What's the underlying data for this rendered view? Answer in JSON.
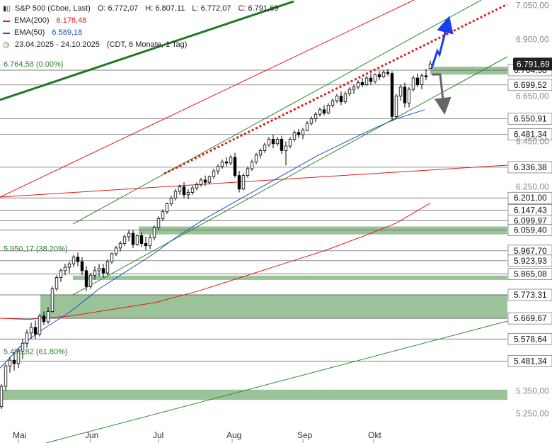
{
  "header": {
    "instrument": "S&P 500 (Cboe, Last)",
    "open": "O: 6.772,07",
    "high": "H: 6.807,11",
    "low": "L: 6.772,07",
    "close": "C: 6.791,69",
    "ema200": "EMA(200)",
    "ema200_value": "6.178,48",
    "ema50": "EMA(50)",
    "ema50_value": "6.589,18",
    "range": "23.04.2025 - 24.10.2025",
    "settings": "(CDT, 6 Monate, 1 Tag)",
    "icons": [
      "bar-chart-icon",
      "clock-icon"
    ]
  },
  "colors": {
    "ema200": "#e21b1b",
    "ema50": "#1f4fc9",
    "zone": "#8fbc8f",
    "trend_green": "#2e8b2e",
    "trend_dark_green": "#1e7a1e",
    "arrow_up": "#1a3ff0",
    "arrow_down": "#666666",
    "last_price_box": "#222222"
  },
  "chart_data": {
    "type": "candlestick",
    "title": "S&P 500 (Cboe, Last)",
    "period": "23.04.2025 - 24.10.2025",
    "ylim": [
      5250,
      7100
    ],
    "y_ticks": [
      "7.050,00",
      "6.900,00",
      "6.650,00",
      "6.450,00",
      "6.250,00",
      "5.350,00",
      "5.250,00"
    ],
    "x_ticks": [
      "Mai",
      "Jun",
      "Jul",
      "Aug",
      "Sep",
      "Okt"
    ],
    "last_price": "6.791,69",
    "horizontal_levels": [
      {
        "value": 6764.58,
        "label": "6.764,58"
      },
      {
        "value": 6699.52,
        "label": "6.699,52"
      },
      {
        "value": 6550.91,
        "label": "6.550,91"
      },
      {
        "value": 6481.34,
        "label": "6.481,34"
      },
      {
        "value": 6336.38,
        "label": "6.336,38"
      },
      {
        "value": 6201.0,
        "label": "6.201,00"
      },
      {
        "value": 6147.43,
        "label": "6.147,43"
      },
      {
        "value": 6099.97,
        "label": "6.099,97"
      },
      {
        "value": 6059.4,
        "label": "6.059,40"
      },
      {
        "value": 5967.7,
        "label": "5.967,70"
      },
      {
        "value": 5923.93,
        "label": "5.923,93"
      },
      {
        "value": 5865.08,
        "label": "5.865,08"
      },
      {
        "value": 5773.31,
        "label": "5.773,31"
      },
      {
        "value": 5669.67,
        "label": "5.669,67"
      },
      {
        "value": 5578.64,
        "label": "5.578,64"
      },
      {
        "value": 5481.34,
        "label": "5.481,34"
      }
    ],
    "fib_labels": [
      {
        "value": 6764.58,
        "text": "6.764,58 (0.00%)"
      },
      {
        "value": 5950.17,
        "text": "5.950,17 (38.20%)"
      },
      {
        "value": 5496.82,
        "text": "5.496,82 (61.80%)"
      }
    ],
    "zones": [
      {
        "low": 6745,
        "high": 6780
      },
      {
        "low": 6040,
        "high": 6075
      },
      {
        "low": 5845,
        "high": 5858
      },
      {
        "low": 5670,
        "high": 5775
      },
      {
        "low": 5310,
        "high": 5355
      }
    ],
    "candles": [
      [
        5280,
        5380,
        5270,
        5370
      ],
      [
        5370,
        5470,
        5350,
        5460
      ],
      [
        5460,
        5500,
        5430,
        5485
      ],
      [
        5485,
        5520,
        5440,
        5470
      ],
      [
        5470,
        5540,
        5450,
        5525
      ],
      [
        5525,
        5580,
        5490,
        5560
      ],
      [
        5560,
        5620,
        5540,
        5605
      ],
      [
        5605,
        5650,
        5580,
        5630
      ],
      [
        5630,
        5660,
        5580,
        5600
      ],
      [
        5600,
        5690,
        5590,
        5680
      ],
      [
        5680,
        5700,
        5640,
        5655
      ],
      [
        5655,
        5720,
        5645,
        5700
      ],
      [
        5700,
        5810,
        5695,
        5800
      ],
      [
        5800,
        5860,
        5790,
        5850
      ],
      [
        5850,
        5890,
        5830,
        5880
      ],
      [
        5880,
        5910,
        5860,
        5895
      ],
      [
        5895,
        5920,
        5870,
        5910
      ],
      [
        5910,
        5950,
        5895,
        5940
      ],
      [
        5940,
        5960,
        5900,
        5920
      ],
      [
        5920,
        5940,
        5860,
        5880
      ],
      [
        5880,
        5900,
        5790,
        5810
      ],
      [
        5810,
        5870,
        5800,
        5860
      ],
      [
        5860,
        5900,
        5840,
        5880
      ],
      [
        5880,
        5910,
        5855,
        5890
      ],
      [
        5890,
        5910,
        5850,
        5870
      ],
      [
        5870,
        5930,
        5860,
        5920
      ],
      [
        5920,
        5960,
        5910,
        5955
      ],
      [
        5955,
        5990,
        5945,
        5980
      ],
      [
        5980,
        6010,
        5965,
        6000
      ],
      [
        6000,
        6040,
        5990,
        6030
      ],
      [
        6030,
        6060,
        6010,
        6045
      ],
      [
        6045,
        6060,
        5980,
        5995
      ],
      [
        5995,
        6040,
        5990,
        6035
      ],
      [
        6035,
        6050,
        5985,
        6000
      ],
      [
        6000,
        6030,
        5970,
        5990
      ],
      [
        5990,
        6040,
        5975,
        6025
      ],
      [
        6025,
        6080,
        6015,
        6070
      ],
      [
        6070,
        6120,
        6060,
        6110
      ],
      [
        6110,
        6150,
        6100,
        6140
      ],
      [
        6140,
        6180,
        6130,
        6175
      ],
      [
        6175,
        6210,
        6165,
        6200
      ],
      [
        6200,
        6240,
        6190,
        6230
      ],
      [
        6230,
        6260,
        6215,
        6250
      ],
      [
        6250,
        6270,
        6200,
        6215
      ],
      [
        6215,
        6240,
        6195,
        6225
      ],
      [
        6225,
        6255,
        6215,
        6245
      ],
      [
        6245,
        6270,
        6235,
        6260
      ],
      [
        6260,
        6290,
        6250,
        6280
      ],
      [
        6280,
        6300,
        6255,
        6270
      ],
      [
        6270,
        6300,
        6260,
        6295
      ],
      [
        6295,
        6330,
        6285,
        6320
      ],
      [
        6320,
        6350,
        6305,
        6340
      ],
      [
        6340,
        6370,
        6330,
        6360
      ],
      [
        6360,
        6380,
        6340,
        6355
      ],
      [
        6355,
        6390,
        6345,
        6380
      ],
      [
        6380,
        6400,
        6290,
        6300
      ],
      [
        6300,
        6320,
        6225,
        6240
      ],
      [
        6240,
        6310,
        6235,
        6300
      ],
      [
        6300,
        6340,
        6290,
        6330
      ],
      [
        6330,
        6370,
        6320,
        6360
      ],
      [
        6360,
        6400,
        6350,
        6390
      ],
      [
        6390,
        6420,
        6375,
        6410
      ],
      [
        6410,
        6445,
        6400,
        6435
      ],
      [
        6435,
        6470,
        6425,
        6460
      ],
      [
        6460,
        6480,
        6420,
        6440
      ],
      [
        6440,
        6470,
        6430,
        6460
      ],
      [
        6460,
        6475,
        6395,
        6410
      ],
      [
        6410,
        6450,
        6345,
        6430
      ],
      [
        6430,
        6470,
        6420,
        6460
      ],
      [
        6460,
        6500,
        6450,
        6490
      ],
      [
        6490,
        6505,
        6465,
        6480
      ],
      [
        6480,
        6510,
        6460,
        6500
      ],
      [
        6500,
        6540,
        6495,
        6530
      ],
      [
        6530,
        6560,
        6520,
        6550
      ],
      [
        6550,
        6580,
        6535,
        6570
      ],
      [
        6570,
        6600,
        6560,
        6590
      ],
      [
        6590,
        6610,
        6565,
        6575
      ],
      [
        6575,
        6620,
        6570,
        6610
      ],
      [
        6610,
        6640,
        6600,
        6630
      ],
      [
        6630,
        6660,
        6620,
        6650
      ],
      [
        6650,
        6670,
        6610,
        6625
      ],
      [
        6625,
        6670,
        6615,
        6660
      ],
      [
        6660,
        6690,
        6650,
        6680
      ],
      [
        6680,
        6700,
        6660,
        6690
      ],
      [
        6690,
        6720,
        6680,
        6710
      ],
      [
        6710,
        6730,
        6690,
        6700
      ],
      [
        6700,
        6740,
        6695,
        6730
      ],
      [
        6730,
        6750,
        6700,
        6715
      ],
      [
        6715,
        6750,
        6705,
        6745
      ],
      [
        6745,
        6760,
        6720,
        6735
      ],
      [
        6735,
        6765,
        6730,
        6755
      ],
      [
        6755,
        6770,
        6740,
        6750
      ],
      [
        6750,
        6760,
        6540,
        6560
      ],
      [
        6560,
        6660,
        6550,
        6650
      ],
      [
        6650,
        6700,
        6630,
        6690
      ],
      [
        6690,
        6710,
        6600,
        6620
      ],
      [
        6620,
        6690,
        6600,
        6680
      ],
      [
        6680,
        6740,
        6670,
        6730
      ],
      [
        6730,
        6750,
        6690,
        6700
      ],
      [
        6700,
        6750,
        6680,
        6740
      ],
      [
        6740,
        6770,
        6720,
        6735
      ],
      [
        6772,
        6807,
        6772,
        6792
      ]
    ],
    "ema50": [
      [
        0,
        5450
      ],
      [
        30,
        5550
      ],
      [
        60,
        5620
      ],
      [
        100,
        5700
      ],
      [
        140,
        5800
      ],
      [
        180,
        5880
      ],
      [
        215,
        5950
      ],
      [
        250,
        6030
      ],
      [
        290,
        6110
      ],
      [
        330,
        6180
      ],
      [
        370,
        6250
      ],
      [
        410,
        6320
      ],
      [
        450,
        6390
      ],
      [
        490,
        6450
      ],
      [
        530,
        6510
      ],
      [
        560,
        6550
      ],
      [
        600,
        6590
      ]
    ],
    "ema200": [
      [
        0,
        5670
      ],
      [
        40,
        5665
      ],
      [
        100,
        5680
      ],
      [
        160,
        5710
      ],
      [
        220,
        5740
      ],
      [
        280,
        5790
      ],
      [
        340,
        5850
      ],
      [
        400,
        5910
      ],
      [
        460,
        5970
      ],
      [
        520,
        6040
      ],
      [
        560,
        6090
      ],
      [
        608,
        6178
      ]
    ]
  }
}
